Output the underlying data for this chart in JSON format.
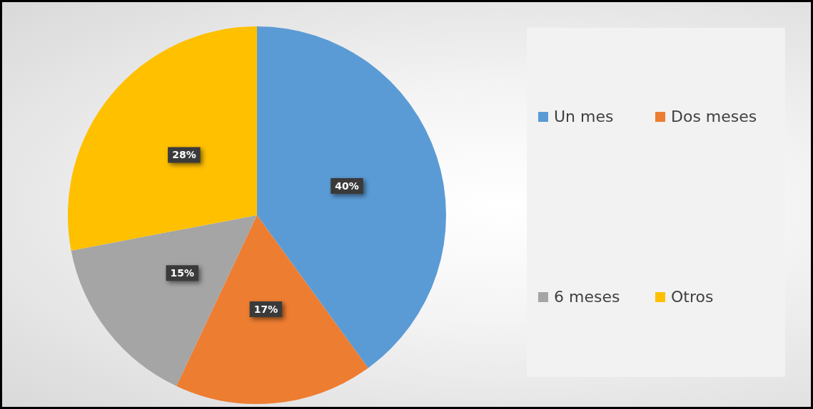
{
  "chart_data": {
    "type": "pie",
    "categories": [
      "Un mes",
      "Dos meses",
      "6 meses",
      "Otros"
    ],
    "values": [
      40,
      17,
      15,
      28
    ],
    "colors": [
      "#5b9bd5",
      "#ed7d31",
      "#a5a5a5",
      "#ffc000"
    ],
    "value_labels": [
      "40%",
      "17%",
      "15%",
      "28%"
    ],
    "legend": "right"
  }
}
